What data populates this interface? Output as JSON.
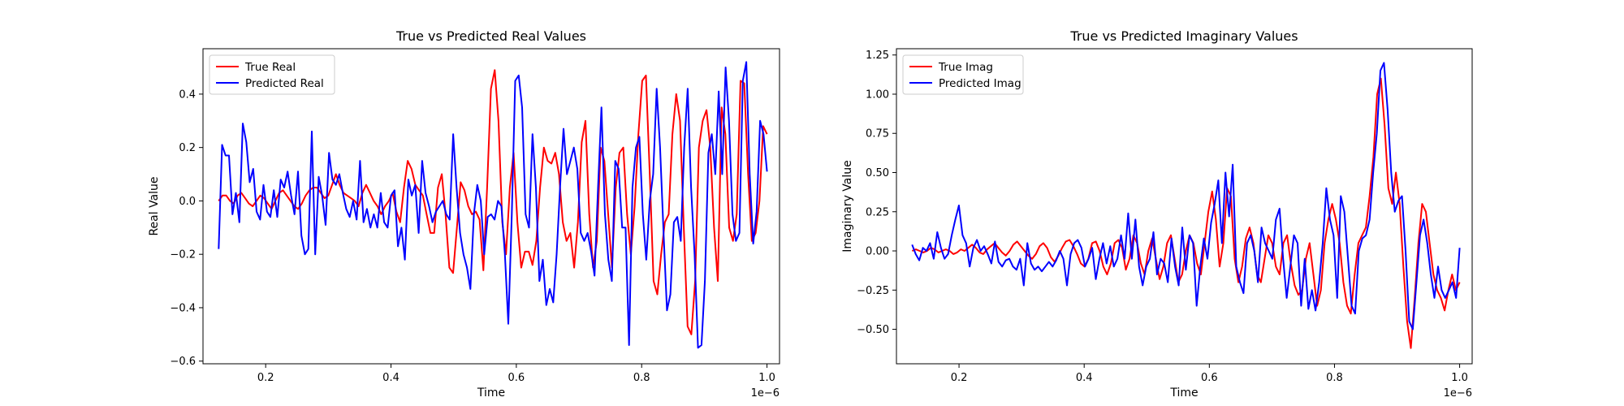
{
  "chart_data": [
    {
      "type": "line",
      "title": "True vs Predicted Real Values",
      "xlabel": "Time",
      "ylabel": "Real Value",
      "x_offset_label": "1e−6",
      "xlim": [
        0.1,
        1.02
      ],
      "ylim": [
        -0.61,
        0.57
      ],
      "x_ticks": [
        0.2,
        0.4,
        0.6,
        0.8,
        1.0
      ],
      "x_tick_labels": [
        "0.2",
        "0.4",
        "0.6",
        "0.8",
        "1.0"
      ],
      "y_ticks": [
        -0.6,
        -0.4,
        -0.2,
        0.0,
        0.2,
        0.4
      ],
      "y_tick_labels": [
        "−0.6",
        "−0.4",
        "−0.2",
        "0.0",
        "0.2",
        "0.4"
      ],
      "legend_position": "upper-left",
      "grid": false,
      "x_start": 0.125,
      "x_end": 1.0,
      "series": [
        {
          "name": "True Real",
          "color": "#ff0000",
          "values": [
            0.0,
            0.02,
            0.02,
            0.0,
            -0.01,
            0.02,
            0.03,
            0.01,
            -0.01,
            -0.02,
            0.0,
            0.02,
            0.01,
            -0.01,
            -0.03,
            0.0,
            0.03,
            0.04,
            0.02,
            0.0,
            -0.02,
            -0.03,
            -0.01,
            0.02,
            0.04,
            0.05,
            0.05,
            0.03,
            0.01,
            0.02,
            0.06,
            0.1,
            0.06,
            0.03,
            0.02,
            0.01,
            0.0,
            -0.02,
            0.03,
            0.06,
            0.03,
            0.0,
            -0.02,
            -0.05,
            -0.02,
            0.0,
            0.03,
            -0.04,
            -0.08,
            0.05,
            0.15,
            0.12,
            0.06,
            0.04,
            0.02,
            -0.05,
            -0.12,
            -0.12,
            0.05,
            0.1,
            -0.05,
            -0.25,
            -0.27,
            -0.1,
            0.07,
            0.04,
            -0.02,
            -0.05,
            -0.04,
            -0.07,
            -0.26,
            0.05,
            0.42,
            0.49,
            0.3,
            -0.08,
            -0.2,
            0.05,
            0.18,
            -0.08,
            -0.25,
            -0.19,
            -0.19,
            -0.24,
            -0.15,
            0.05,
            0.2,
            0.15,
            0.14,
            0.18,
            0.1,
            -0.08,
            -0.15,
            -0.12,
            -0.25,
            -0.08,
            0.22,
            0.3,
            -0.05,
            -0.25,
            -0.15,
            0.2,
            0.15,
            -0.05,
            -0.25,
            0.05,
            0.18,
            0.2,
            -0.05,
            -0.2,
            -0.02,
            0.25,
            0.45,
            0.47,
            0.1,
            -0.3,
            -0.35,
            -0.2,
            -0.08,
            -0.05,
            0.25,
            0.4,
            0.3,
            -0.1,
            -0.47,
            -0.5,
            -0.3,
            0.2,
            0.3,
            0.34,
            0.2,
            -0.1,
            -0.3,
            0.35,
            0.25,
            -0.1,
            -0.15,
            -0.05,
            0.45,
            0.44,
            0.1,
            -0.15,
            -0.12,
            0.0,
            0.28,
            0.25
          ]
        },
        {
          "name": "Predicted Real",
          "color": "#0000ff",
          "values": [
            -0.18,
            0.21,
            0.17,
            0.17,
            -0.05,
            0.03,
            -0.08,
            0.29,
            0.22,
            0.07,
            0.12,
            -0.04,
            -0.07,
            0.06,
            -0.04,
            -0.06,
            0.04,
            -0.06,
            0.08,
            0.05,
            0.11,
            0.02,
            -0.05,
            0.11,
            -0.13,
            -0.2,
            -0.18,
            0.26,
            -0.2,
            0.09,
            0.02,
            -0.09,
            0.18,
            0.08,
            0.06,
            0.1,
            0.03,
            -0.03,
            -0.06,
            0.0,
            -0.07,
            0.15,
            -0.08,
            -0.03,
            -0.1,
            -0.05,
            -0.1,
            0.03,
            -0.08,
            -0.1,
            0.02,
            0.04,
            -0.17,
            -0.1,
            -0.22,
            0.08,
            0.02,
            0.06,
            -0.12,
            0.15,
            0.03,
            -0.02,
            -0.08,
            -0.04,
            -0.02,
            0.0,
            -0.05,
            -0.07,
            0.25,
            0.05,
            -0.12,
            -0.2,
            -0.25,
            -0.33,
            -0.05,
            0.06,
            0.0,
            -0.2,
            -0.06,
            -0.05,
            -0.07,
            0.0,
            -0.02,
            -0.2,
            -0.46,
            -0.05,
            0.45,
            0.47,
            0.35,
            -0.05,
            -0.1,
            0.25,
            0.05,
            -0.3,
            -0.22,
            -0.39,
            -0.33,
            -0.38,
            -0.2,
            0.05,
            0.27,
            0.1,
            0.15,
            0.2,
            0.12,
            -0.12,
            -0.15,
            -0.12,
            -0.19,
            -0.28,
            0.05,
            0.35,
            -0.05,
            -0.22,
            -0.3,
            0.15,
            0.12,
            -0.1,
            -0.1,
            -0.54,
            0.05,
            0.2,
            0.24,
            -0.05,
            -0.22,
            0.0,
            0.1,
            0.42,
            0.2,
            -0.12,
            -0.41,
            -0.35,
            -0.08,
            -0.06,
            -0.15,
            0.2,
            0.42,
            0.05,
            -0.2,
            -0.55,
            -0.54,
            -0.3,
            0.18,
            0.25,
            0.1,
            0.41,
            0.1,
            0.5,
            0.3,
            -0.05,
            -0.15,
            -0.12,
            0.45,
            0.52,
            0.1,
            -0.16,
            -0.04,
            0.3,
            0.25,
            0.11
          ]
        }
      ]
    },
    {
      "type": "line",
      "title": "True vs Predicted Imaginary Values",
      "xlabel": "Time",
      "ylabel": "Imaginary Value",
      "x_offset_label": "1e−6",
      "xlim": [
        0.1,
        1.02
      ],
      "ylim": [
        -0.72,
        1.29
      ],
      "x_ticks": [
        0.2,
        0.4,
        0.6,
        0.8,
        1.0
      ],
      "x_tick_labels": [
        "0.2",
        "0.4",
        "0.6",
        "0.8",
        "1.0"
      ],
      "y_ticks": [
        -0.5,
        -0.25,
        0.0,
        0.25,
        0.5,
        0.75,
        1.0,
        1.25
      ],
      "y_tick_labels": [
        "−0.50",
        "−0.25",
        "0.00",
        "0.25",
        "0.50",
        "0.75",
        "1.00",
        "1.25"
      ],
      "legend_position": "upper-left",
      "grid": false,
      "x_start": 0.125,
      "x_end": 1.0,
      "series": [
        {
          "name": "True Imag",
          "color": "#ff0000",
          "values": [
            0.0,
            0.01,
            0.0,
            -0.01,
            0.0,
            0.02,
            0.01,
            -0.01,
            0.0,
            0.01,
            0.0,
            -0.02,
            -0.01,
            0.01,
            0.0,
            0.02,
            0.04,
            0.02,
            -0.01,
            -0.02,
            0.01,
            0.03,
            0.05,
            0.02,
            -0.01,
            -0.03,
            0.0,
            0.04,
            0.06,
            0.03,
            0.0,
            -0.03,
            -0.05,
            -0.02,
            0.03,
            0.05,
            0.02,
            -0.04,
            -0.07,
            -0.03,
            0.02,
            0.06,
            0.07,
            0.03,
            -0.02,
            -0.08,
            -0.1,
            -0.05,
            0.05,
            0.06,
            0.0,
            -0.1,
            -0.15,
            -0.08,
            0.05,
            0.07,
            0.02,
            -0.12,
            -0.05,
            0.1,
            0.05,
            -0.08,
            -0.15,
            0.0,
            0.08,
            -0.05,
            -0.18,
            -0.1,
            0.05,
            0.1,
            -0.05,
            -0.2,
            -0.15,
            0.0,
            0.1,
            0.05,
            -0.08,
            -0.15,
            0.05,
            0.25,
            0.38,
            0.2,
            -0.1,
            0.05,
            0.4,
            0.35,
            -0.05,
            -0.2,
            -0.1,
            0.08,
            0.15,
            0.05,
            -0.15,
            -0.2,
            -0.05,
            0.1,
            0.05,
            -0.1,
            -0.15,
            0.05,
            0.1,
            -0.08,
            -0.22,
            -0.28,
            -0.25,
            -0.05,
            0.05,
            -0.15,
            -0.35,
            -0.25,
            0.05,
            0.2,
            0.3,
            0.2,
            0.05,
            -0.2,
            -0.35,
            -0.4,
            -0.15,
            0.05,
            0.1,
            0.15,
            0.35,
            0.6,
            1.0,
            1.1,
            0.8,
            0.4,
            0.3,
            0.5,
            0.3,
            -0.1,
            -0.45,
            -0.62,
            -0.3,
            0.05,
            0.3,
            0.25,
            0.05,
            -0.15,
            -0.25,
            -0.3,
            -0.38,
            -0.25,
            -0.15,
            -0.25,
            -0.2
          ]
        },
        {
          "name": "Predicted Imag",
          "color": "#0000ff",
          "values": [
            0.04,
            -0.02,
            -0.06,
            0.02,
            0.0,
            0.05,
            -0.05,
            0.12,
            0.02,
            -0.05,
            -0.02,
            0.1,
            0.2,
            0.29,
            0.1,
            0.05,
            -0.1,
            0.02,
            0.07,
            0.0,
            0.03,
            -0.02,
            -0.08,
            0.06,
            -0.07,
            -0.1,
            -0.06,
            -0.05,
            -0.1,
            -0.12,
            -0.05,
            -0.22,
            0.05,
            -0.08,
            -0.12,
            -0.1,
            -0.13,
            -0.1,
            -0.07,
            -0.1,
            -0.06,
            0.0,
            -0.05,
            -0.22,
            -0.02,
            0.05,
            0.07,
            0.02,
            -0.1,
            -0.05,
            0.02,
            -0.18,
            -0.05,
            0.05,
            -0.08,
            0.03,
            -0.1,
            -0.05,
            0.1,
            -0.05,
            0.24,
            -0.05,
            0.2,
            -0.1,
            -0.22,
            -0.1,
            -0.05,
            0.12,
            -0.15,
            -0.05,
            -0.08,
            -0.2,
            0.08,
            -0.1,
            -0.22,
            0.15,
            -0.12,
            0.1,
            0.05,
            -0.35,
            -0.1,
            0.08,
            -0.05,
            0.18,
            0.3,
            0.45,
            0.05,
            0.5,
            0.22,
            0.55,
            -0.1,
            -0.2,
            -0.27,
            0.05,
            0.1,
            0.0,
            -0.2,
            0.15,
            0.05,
            0.0,
            -0.05,
            0.2,
            0.27,
            -0.05,
            -0.3,
            -0.1,
            0.1,
            0.05,
            -0.35,
            -0.05,
            -0.37,
            -0.25,
            -0.38,
            -0.2,
            0.05,
            0.4,
            0.2,
            0.1,
            -0.3,
            0.35,
            0.25,
            -0.05,
            -0.35,
            -0.4,
            0.0,
            0.08,
            0.1,
            0.2,
            0.5,
            0.75,
            1.15,
            1.2,
            0.9,
            0.5,
            0.25,
            0.32,
            0.35,
            0.0,
            -0.45,
            -0.5,
            -0.2,
            0.1,
            0.2,
            0.05,
            -0.15,
            -0.3,
            -0.1,
            -0.25,
            -0.3,
            -0.25,
            -0.2,
            -0.3,
            0.02
          ]
        }
      ]
    }
  ]
}
